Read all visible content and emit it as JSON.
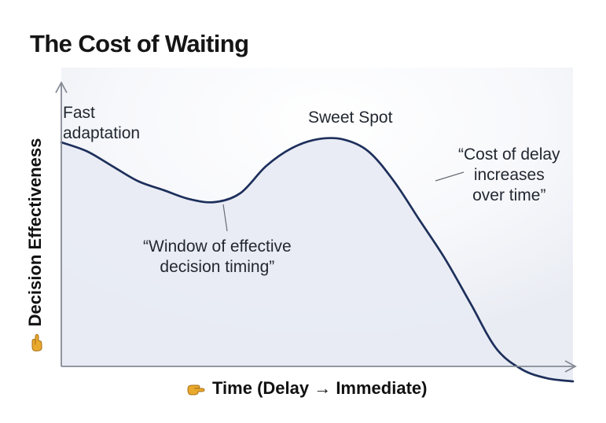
{
  "chart_data": {
    "type": "area",
    "title": "The Cost of Waiting",
    "xlabel": "Time (Delay → Immediate)",
    "ylabel": "Decision Effectiveness",
    "grid": false,
    "legend": "none",
    "x": [
      0,
      0.05,
      0.1,
      0.15,
      0.2,
      0.25,
      0.3,
      0.35,
      0.4,
      0.45,
      0.5,
      0.55,
      0.6,
      0.65,
      0.7,
      0.75,
      0.8,
      0.85,
      0.9,
      0.95,
      1.0
    ],
    "series": [
      {
        "values": [
          0.75,
          0.72,
          0.67,
          0.62,
          0.59,
          0.56,
          0.55,
          0.58,
          0.67,
          0.73,
          0.76,
          0.76,
          0.72,
          0.62,
          0.49,
          0.36,
          0.21,
          0.06,
          -0.01,
          -0.04,
          -0.05
        ]
      }
    ],
    "xlim": [
      0,
      1
    ],
    "ylim": [
      0,
      1
    ],
    "annotations": {
      "fast": "Fast\nadaptation",
      "sweet": "Sweet Spot",
      "cost": "“Cost of delay\nincreases\nover time”",
      "window": "“Window of effective\ndecision timing”"
    },
    "colors": {
      "curve": "#1d2f5b",
      "area": "#e8ebf3",
      "axis": "#8a8f9a",
      "title": "#151515",
      "text": "#222831",
      "hand": "#e8a92c"
    },
    "icons": {
      "y_axis": "pointing-hand-icon",
      "x_axis": "pointing-hand-icon"
    }
  }
}
